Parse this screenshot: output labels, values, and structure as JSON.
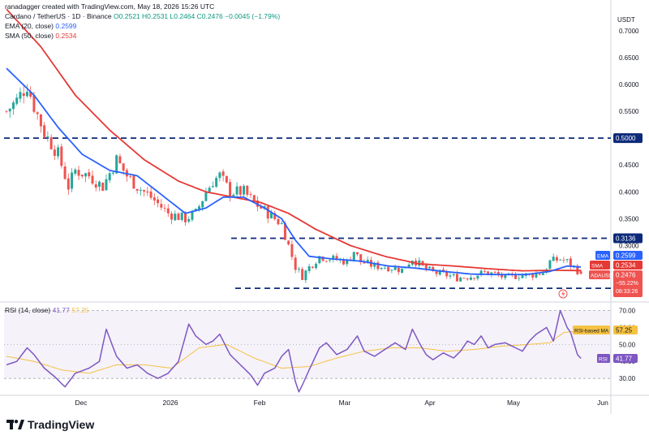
{
  "header": {
    "created_by": "ranadagger created with TradingView.com, May 18, 2026 15:26 UTC",
    "symbol": "Cardano / TetherUS · 1D · Binance",
    "ohlc": "O0.2521 H0.2531 L0.2464 C0.2476 −0.0045 (−1.79%)",
    "ema_label": "EMA (20, close)",
    "ema_value": "0.2599",
    "sma_label": "SMA (50, close)",
    "sma_value": "0.2534",
    "rsi_label": "RSI (14, close)",
    "rsi_value": "41.77",
    "rsi_ma_value": "57.25"
  },
  "branding": {
    "logo_text": "TradingView"
  },
  "colors": {
    "up": "#26a69a",
    "down": "#ef5350",
    "ema": "#2962ff",
    "sma": "#e53935",
    "rsi": "#7e57c2",
    "rsi_ma": "#f5c242",
    "level_line": "#0d2a7a"
  },
  "chart_data": [
    {
      "type": "candlestick",
      "title": "Cardano / TetherUS · 1D · Binance",
      "y_axis_unit": "USDT",
      "y_ticks": [
        "0.7000",
        "0.6500",
        "0.6000",
        "0.5500",
        "0.5000",
        "0.4500",
        "0.4000",
        "0.3500",
        "0.3000"
      ],
      "x_ticks": [
        "Dec",
        "2026",
        "Feb",
        "Mar",
        "Apr",
        "May",
        "Jun"
      ],
      "ylim": [
        0.195,
        0.745
      ],
      "horizontal_levels": [
        {
          "value": 0.5,
          "label": "0.5000"
        },
        {
          "value": 0.3136,
          "label": "0.3136"
        },
        {
          "value": 0.2205,
          "label": "0.2205"
        }
      ],
      "price_tags": [
        {
          "name": "EMA",
          "value": "0.2599"
        },
        {
          "name": "SMA",
          "value": "0.2534"
        },
        {
          "name": "ADAUSDT",
          "value": "0.2476",
          "extra": "−55.22%",
          "timer": "08:33:26"
        }
      ],
      "series": [
        {
          "name": "Price",
          "anchors": [
            [
              0,
              0.55
            ],
            [
              3,
              0.57
            ],
            [
              6,
              0.6
            ],
            [
              8,
              0.56
            ],
            [
              11,
              0.51
            ],
            [
              15,
              0.47
            ],
            [
              18,
              0.41
            ],
            [
              20,
              0.44
            ],
            [
              24,
              0.43
            ],
            [
              28,
              0.41
            ],
            [
              32,
              0.46
            ],
            [
              35,
              0.43
            ],
            [
              38,
              0.41
            ],
            [
              42,
              0.39
            ],
            [
              47,
              0.36
            ],
            [
              52,
              0.35
            ],
            [
              55,
              0.36
            ],
            [
              58,
              0.4
            ],
            [
              60,
              0.42
            ],
            [
              62,
              0.43
            ],
            [
              65,
              0.4
            ],
            [
              69,
              0.4
            ],
            [
              72,
              0.38
            ],
            [
              76,
              0.36
            ],
            [
              80,
              0.34
            ],
            [
              82,
              0.3
            ],
            [
              84,
              0.26
            ],
            [
              86,
              0.243
            ],
            [
              88,
              0.26
            ],
            [
              91,
              0.28
            ],
            [
              95,
              0.275
            ],
            [
              99,
              0.27
            ],
            [
              101,
              0.29
            ],
            [
              103,
              0.27
            ],
            [
              107,
              0.262
            ],
            [
              111,
              0.26
            ],
            [
              115,
              0.255
            ],
            [
              118,
              0.276
            ],
            [
              121,
              0.26
            ],
            [
              124,
              0.25
            ],
            [
              128,
              0.245
            ],
            [
              131,
              0.24
            ],
            [
              135,
              0.243
            ],
            [
              139,
              0.25
            ],
            [
              142,
              0.247
            ],
            [
              145,
              0.24
            ],
            [
              149,
              0.245
            ],
            [
              152,
              0.245
            ],
            [
              156,
              0.25
            ],
            [
              158,
              0.27
            ],
            [
              161,
              0.275
            ],
            [
              163,
              0.27
            ],
            [
              165,
              0.26
            ],
            [
              167,
              0.2476
            ]
          ]
        },
        {
          "name": "EMA (20, close)",
          "anchors": [
            [
              0,
              0.63
            ],
            [
              8,
              0.58
            ],
            [
              15,
              0.52
            ],
            [
              22,
              0.47
            ],
            [
              30,
              0.44
            ],
            [
              38,
              0.43
            ],
            [
              46,
              0.39
            ],
            [
              52,
              0.36
            ],
            [
              58,
              0.37
            ],
            [
              63,
              0.39
            ],
            [
              69,
              0.39
            ],
            [
              75,
              0.37
            ],
            [
              80,
              0.35
            ],
            [
              84,
              0.31
            ],
            [
              88,
              0.28
            ],
            [
              95,
              0.275
            ],
            [
              103,
              0.271
            ],
            [
              111,
              0.262
            ],
            [
              119,
              0.258
            ],
            [
              127,
              0.252
            ],
            [
              135,
              0.247
            ],
            [
              143,
              0.246
            ],
            [
              151,
              0.246
            ],
            [
              158,
              0.252
            ],
            [
              163,
              0.262
            ],
            [
              167,
              0.2599
            ]
          ]
        },
        {
          "name": "SMA (50, close)",
          "anchors": [
            [
              0,
              0.74
            ],
            [
              10,
              0.67
            ],
            [
              20,
              0.58
            ],
            [
              30,
              0.515
            ],
            [
              40,
              0.46
            ],
            [
              50,
              0.42
            ],
            [
              58,
              0.4
            ],
            [
              66,
              0.39
            ],
            [
              74,
              0.38
            ],
            [
              82,
              0.36
            ],
            [
              90,
              0.33
            ],
            [
              100,
              0.3
            ],
            [
              110,
              0.28
            ],
            [
              120,
              0.266
            ],
            [
              130,
              0.262
            ],
            [
              140,
              0.257
            ],
            [
              150,
              0.253
            ],
            [
              160,
              0.254
            ],
            [
              167,
              0.2534
            ]
          ]
        }
      ]
    },
    {
      "type": "line",
      "title": "RSI (14, close)",
      "y_ticks": [
        "70.00",
        "60.00",
        "50.00",
        "40.00",
        "30.00"
      ],
      "ylim": [
        20,
        75
      ],
      "bands": {
        "upper": 70,
        "lower": 30
      },
      "tags": [
        {
          "name": "RSI-based MA",
          "value": "57.25"
        },
        {
          "name": "RSI",
          "value": "41.77"
        }
      ],
      "series": [
        {
          "name": "RSI",
          "anchors": [
            [
              0,
              38
            ],
            [
              3,
              40
            ],
            [
              6,
              48
            ],
            [
              8,
              44
            ],
            [
              11,
              36
            ],
            [
              14,
              31
            ],
            [
              17,
              25
            ],
            [
              20,
              33
            ],
            [
              24,
              36
            ],
            [
              27,
              40
            ],
            [
              29,
              59
            ],
            [
              32,
              43
            ],
            [
              35,
              36
            ],
            [
              38,
              38
            ],
            [
              41,
              33
            ],
            [
              44,
              30
            ],
            [
              47,
              33
            ],
            [
              50,
              40
            ],
            [
              53,
              62
            ],
            [
              55,
              55
            ],
            [
              58,
              50
            ],
            [
              60,
              52
            ],
            [
              62,
              56
            ],
            [
              65,
              44
            ],
            [
              67,
              40
            ],
            [
              69,
              36
            ],
            [
              71,
              32
            ],
            [
              73,
              26
            ],
            [
              75,
              33
            ],
            [
              78,
              36
            ],
            [
              80,
              43
            ],
            [
              82,
              47
            ],
            [
              84,
              28
            ],
            [
              85,
              22
            ],
            [
              86,
              26
            ],
            [
              88,
              35
            ],
            [
              91,
              48
            ],
            [
              93,
              51
            ],
            [
              96,
              44
            ],
            [
              99,
              47
            ],
            [
              102,
              55
            ],
            [
              104,
              46
            ],
            [
              107,
              43
            ],
            [
              110,
              47
            ],
            [
              113,
              51
            ],
            [
              116,
              47
            ],
            [
              118,
              59
            ],
            [
              120,
              51
            ],
            [
              122,
              44
            ],
            [
              124,
              41
            ],
            [
              127,
              45
            ],
            [
              130,
              42
            ],
            [
              132,
              46
            ],
            [
              134,
              52
            ],
            [
              136,
              50
            ],
            [
              138,
              55
            ],
            [
              140,
              48
            ],
            [
              142,
              50
            ],
            [
              145,
              51
            ],
            [
              148,
              48
            ],
            [
              150,
              46
            ],
            [
              152,
              52
            ],
            [
              154,
              56
            ],
            [
              157,
              60
            ],
            [
              159,
              52
            ],
            [
              161,
              70
            ],
            [
              163,
              60
            ],
            [
              164,
              57
            ],
            [
              166,
              44
            ],
            [
              167,
              41.77
            ]
          ]
        },
        {
          "name": "RSI-based MA",
          "anchors": [
            [
              0,
              43
            ],
            [
              8,
              40
            ],
            [
              16,
              35
            ],
            [
              24,
              33
            ],
            [
              32,
              38
            ],
            [
              40,
              38
            ],
            [
              48,
              36
            ],
            [
              56,
              48
            ],
            [
              64,
              50
            ],
            [
              72,
              42
            ],
            [
              80,
              36
            ],
            [
              88,
              37
            ],
            [
              96,
              42
            ],
            [
              104,
              46
            ],
            [
              112,
              48
            ],
            [
              120,
              48
            ],
            [
              128,
              46
            ],
            [
              136,
              47
            ],
            [
              144,
              49
            ],
            [
              152,
              50
            ],
            [
              158,
              51
            ],
            [
              162,
              57
            ],
            [
              166,
              58
            ],
            [
              167,
              57.25
            ]
          ]
        }
      ]
    }
  ]
}
